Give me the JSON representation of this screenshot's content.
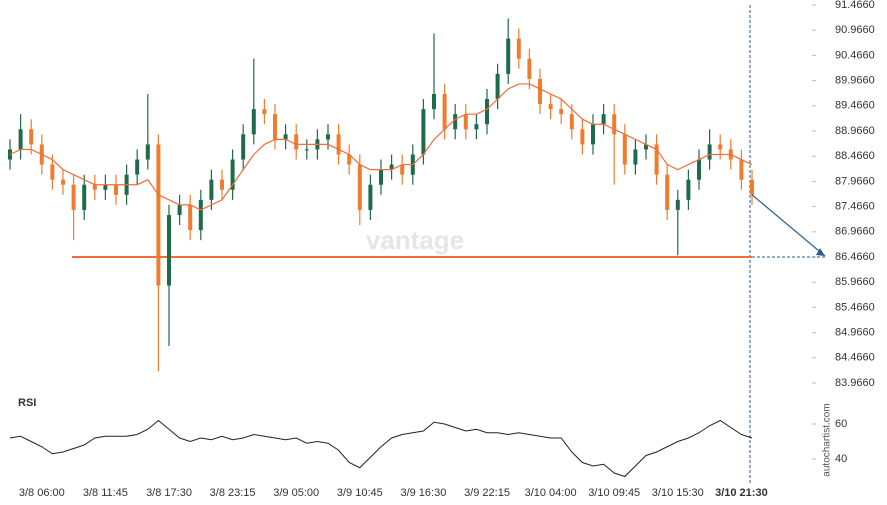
{
  "chart_data": [
    {
      "type": "candlestick",
      "categories": [
        null,
        null,
        null,
        "3/8 06:00",
        null,
        null,
        null,
        null,
        null,
        "3/8 11:45",
        null,
        null,
        null,
        null,
        null,
        "3/8 17:30",
        null,
        null,
        null,
        null,
        null,
        "3/8 23:15",
        null,
        null,
        null,
        null,
        null,
        "3/9 05:00",
        null,
        null,
        null,
        null,
        null,
        "3/9 10:45",
        null,
        null,
        null,
        null,
        null,
        "3/9 16:30",
        null,
        null,
        null,
        null,
        null,
        "3/9 22:15",
        null,
        null,
        null,
        null,
        null,
        "3/10 04:00",
        null,
        null,
        null,
        null,
        null,
        "3/10 09:45",
        null,
        null,
        null,
        null,
        null,
        "3/10 15:30",
        null,
        null,
        null,
        null,
        null,
        "3/10 21:30",
        null
      ],
      "open": [
        88.4,
        88.6,
        89.0,
        88.7,
        88.3,
        88.0,
        87.9,
        87.4,
        87.9,
        87.8,
        87.9,
        87.7,
        88.1,
        88.4,
        88.7,
        85.9,
        87.3,
        87.5,
        87.0,
        87.6,
        88.0,
        87.8,
        88.4,
        88.9,
        89.4,
        89.3,
        88.8,
        88.9,
        88.6,
        88.6,
        88.8,
        88.9,
        88.5,
        88.3,
        87.4,
        87.9,
        88.2,
        88.3,
        88.1,
        88.5,
        89.4,
        89.7,
        89.0,
        89.3,
        89.0,
        89.1,
        89.6,
        90.1,
        90.8,
        90.4,
        90.0,
        89.5,
        89.4,
        89.3,
        89.0,
        88.7,
        89.1,
        89.3,
        88.9,
        88.3,
        88.6,
        88.7,
        88.1,
        87.4,
        87.6,
        88.0,
        88.4,
        88.7,
        88.6,
        88.4,
        88.0
      ],
      "high": [
        88.8,
        89.3,
        89.2,
        88.9,
        88.5,
        88.2,
        88.1,
        88.1,
        88.1,
        88.1,
        88.1,
        88.3,
        88.6,
        89.7,
        88.9,
        87.5,
        87.7,
        87.7,
        87.8,
        88.2,
        88.2,
        88.6,
        89.1,
        90.4,
        89.6,
        89.5,
        89.1,
        89.1,
        88.8,
        89.0,
        89.1,
        89.1,
        88.7,
        88.5,
        88.1,
        88.4,
        88.5,
        88.5,
        88.7,
        89.6,
        90.9,
        89.9,
        89.5,
        89.5,
        89.3,
        89.8,
        90.3,
        91.2,
        91.0,
        90.6,
        90.2,
        89.7,
        89.6,
        89.5,
        89.2,
        89.3,
        89.5,
        89.5,
        89.1,
        88.8,
        88.9,
        88.9,
        88.3,
        87.8,
        88.2,
        88.6,
        89.0,
        88.9,
        88.8,
        88.6,
        88.2
      ],
      "low": [
        88.2,
        88.4,
        88.5,
        88.1,
        87.8,
        87.7,
        86.8,
        87.2,
        87.6,
        87.6,
        87.5,
        87.5,
        87.9,
        88.2,
        84.2,
        84.7,
        87.1,
        86.8,
        86.8,
        87.4,
        87.6,
        87.6,
        88.2,
        88.7,
        89.1,
        88.6,
        88.6,
        88.4,
        88.4,
        88.4,
        88.6,
        88.3,
        88.1,
        87.1,
        87.2,
        87.7,
        88.0,
        87.9,
        87.9,
        88.3,
        89.2,
        88.8,
        88.8,
        88.8,
        88.8,
        88.9,
        89.4,
        89.9,
        90.2,
        89.8,
        89.3,
        89.2,
        89.1,
        88.8,
        88.5,
        88.5,
        88.9,
        87.9,
        88.1,
        88.1,
        88.4,
        87.9,
        87.2,
        86.5,
        87.4,
        87.8,
        88.2,
        88.4,
        88.2,
        87.8,
        87.5
      ],
      "close": [
        88.6,
        89.0,
        88.7,
        88.3,
        88.0,
        87.9,
        87.4,
        87.9,
        87.8,
        87.9,
        87.7,
        88.1,
        88.4,
        88.7,
        85.9,
        87.3,
        87.5,
        87.0,
        87.6,
        88.0,
        87.8,
        88.4,
        88.9,
        89.4,
        89.3,
        88.8,
        88.9,
        88.6,
        88.6,
        88.8,
        88.9,
        88.5,
        88.3,
        87.4,
        87.9,
        88.2,
        88.3,
        88.1,
        88.5,
        89.4,
        89.7,
        89.0,
        89.3,
        89.0,
        89.1,
        89.6,
        90.1,
        90.8,
        90.4,
        90.0,
        89.5,
        89.4,
        89.3,
        89.0,
        88.7,
        89.1,
        89.3,
        88.9,
        88.3,
        88.6,
        88.7,
        88.1,
        87.4,
        87.6,
        88.0,
        88.4,
        88.7,
        88.6,
        88.4,
        88.0,
        87.7
      ],
      "ma_values": [
        88.5,
        88.6,
        88.6,
        88.5,
        88.4,
        88.2,
        88.1,
        88.0,
        87.9,
        87.9,
        87.9,
        87.9,
        87.9,
        88.0,
        87.7,
        87.6,
        87.5,
        87.5,
        87.4,
        87.5,
        87.6,
        87.9,
        88.2,
        88.5,
        88.7,
        88.8,
        88.8,
        88.7,
        88.7,
        88.7,
        88.7,
        88.6,
        88.5,
        88.3,
        88.2,
        88.2,
        88.2,
        88.3,
        88.3,
        88.5,
        88.8,
        89.0,
        89.2,
        89.3,
        89.3,
        89.4,
        89.6,
        89.8,
        89.9,
        89.9,
        89.8,
        89.7,
        89.6,
        89.4,
        89.2,
        89.1,
        89.1,
        89.0,
        88.9,
        88.8,
        88.7,
        88.6,
        88.3,
        88.2,
        88.3,
        88.4,
        88.5,
        88.5,
        88.5,
        88.4,
        88.3
      ],
      "ma_color": "#f26b3a",
      "up_color": "#1e6b4a",
      "down_color": "#f07c2e",
      "level": 86.466,
      "level_color": "#f26b3a",
      "ylim": [
        83.716,
        91.466
      ],
      "yticks": [
        {
          "value": 91.466,
          "label": "91.4660"
        },
        {
          "value": 90.966,
          "label": "90.9660"
        },
        {
          "value": 90.466,
          "label": "90.4660"
        },
        {
          "value": 89.966,
          "label": "89.9660"
        },
        {
          "value": 89.466,
          "label": "89.4660"
        },
        {
          "value": 88.966,
          "label": "88.9660"
        },
        {
          "value": 88.466,
          "label": "88.4660"
        },
        {
          "value": 87.966,
          "label": "87.9660"
        },
        {
          "value": 87.466,
          "label": "87.4660"
        },
        {
          "value": 86.966,
          "label": "86.9660"
        },
        {
          "value": 86.466,
          "label": "86.4660"
        },
        {
          "value": 85.966,
          "label": "85.9660"
        },
        {
          "value": 85.466,
          "label": "85.4660"
        },
        {
          "value": 84.966,
          "label": "84.9660"
        },
        {
          "value": 84.466,
          "label": "84.4660"
        },
        {
          "value": 83.966,
          "label": "83.9660"
        }
      ]
    },
    {
      "type": "line",
      "title": "RSI",
      "color": "#222222",
      "values": [
        52,
        53,
        50,
        47,
        43,
        44,
        46,
        48,
        52,
        53,
        53,
        53,
        54,
        57,
        62,
        57,
        52,
        50,
        52,
        51,
        53,
        51,
        52,
        54,
        53,
        52,
        51,
        52,
        49,
        50,
        49,
        45,
        38,
        35,
        41,
        47,
        52,
        54,
        55,
        56,
        61,
        60,
        58,
        56,
        57,
        55,
        55,
        54,
        55,
        54,
        53,
        52,
        52,
        44,
        38,
        36,
        37,
        32,
        30,
        36,
        42,
        44,
        47,
        50,
        52,
        55,
        59,
        62,
        58,
        54,
        52
      ],
      "ylim": [
        30,
        70
      ],
      "yticks": [
        40,
        60
      ]
    }
  ],
  "watermark": "vantage",
  "source": "autochartist.com"
}
